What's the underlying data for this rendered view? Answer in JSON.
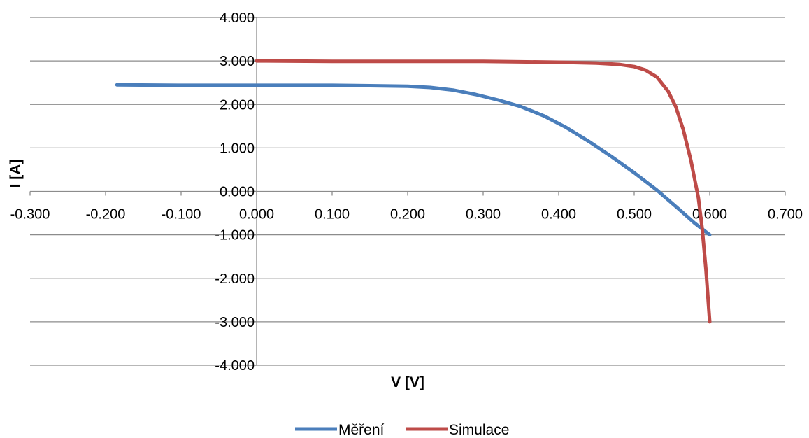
{
  "chart_data": {
    "type": "line",
    "title": "",
    "xlabel": "V [V]",
    "ylabel": "I [A]",
    "xlim": [
      -0.3,
      0.7
    ],
    "ylim": [
      -4.0,
      4.0
    ],
    "x_ticks": [
      -0.3,
      -0.2,
      -0.1,
      0.0,
      0.1,
      0.2,
      0.3,
      0.4,
      0.5,
      0.6,
      0.7
    ],
    "y_ticks": [
      -4.0,
      -3.0,
      -2.0,
      -1.0,
      0.0,
      1.0,
      2.0,
      3.0,
      4.0
    ],
    "x_tick_labels": [
      "-0.300",
      "-0.200",
      "-0.100",
      "0.000",
      "0.100",
      "0.200",
      "0.300",
      "0.400",
      "0.500",
      "0.600",
      "0.700"
    ],
    "y_tick_labels": [
      "-4.000",
      "-3.000",
      "-2.000",
      "-1.000",
      "0.000",
      "1.000",
      "2.000",
      "3.000",
      "4.000"
    ],
    "grid": {
      "horizontal": true,
      "vertical": false
    },
    "legend": {
      "position": "bottom"
    },
    "series": [
      {
        "name": "Měření",
        "color": "#4a7ebb",
        "x": [
          -0.185,
          -0.1,
          0.0,
          0.1,
          0.15,
          0.2,
          0.23,
          0.26,
          0.29,
          0.32,
          0.35,
          0.38,
          0.41,
          0.44,
          0.47,
          0.5,
          0.53,
          0.56,
          0.58,
          0.6
        ],
        "y": [
          2.45,
          2.44,
          2.44,
          2.44,
          2.43,
          2.42,
          2.39,
          2.33,
          2.23,
          2.1,
          1.95,
          1.74,
          1.47,
          1.15,
          0.8,
          0.43,
          0.03,
          -0.42,
          -0.73,
          -1.0
        ]
      },
      {
        "name": "Simulace",
        "color": "#be4b48",
        "x": [
          0.0,
          0.1,
          0.2,
          0.3,
          0.4,
          0.45,
          0.48,
          0.5,
          0.515,
          0.53,
          0.545,
          0.555,
          0.565,
          0.575,
          0.585,
          0.59,
          0.595,
          0.6
        ],
        "y": [
          3.0,
          2.99,
          2.99,
          2.99,
          2.97,
          2.95,
          2.92,
          2.87,
          2.79,
          2.63,
          2.3,
          1.95,
          1.42,
          0.72,
          -0.15,
          -0.85,
          -1.8,
          -3.0
        ]
      }
    ]
  }
}
